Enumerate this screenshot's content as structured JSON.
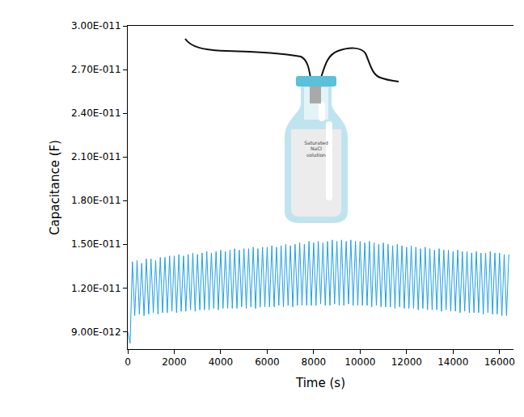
{
  "chart_data": {
    "type": "line",
    "x_label": "Time (s)",
    "y_label": "Capacitance (F)",
    "annotations": [
      "Saturated NaCl solution"
    ],
    "grid": false,
    "color": "#1e9fe8",
    "xlim": [
      0,
      16600
    ],
    "ylim": [
      7.8e-12,
      3e-11
    ],
    "xticks": [
      0,
      2000,
      4000,
      6000,
      8000,
      10000,
      12000,
      14000,
      16000
    ],
    "yticks": [
      {
        "value": 9e-12,
        "label": "9.00E-012"
      },
      {
        "value": 1.2e-11,
        "label": "1.20E-011"
      },
      {
        "value": 1.5e-11,
        "label": "1.50E-011"
      },
      {
        "value": 1.8e-11,
        "label": "1.80E-011"
      },
      {
        "value": 2.1e-11,
        "label": "2.10E-011"
      },
      {
        "value": 2.4e-11,
        "label": "2.40E-011"
      },
      {
        "value": 2.7e-11,
        "label": "2.70E-011"
      },
      {
        "value": 3e-11,
        "label": "3.00E-011"
      }
    ],
    "x": [
      0,
      100,
      200,
      300,
      400,
      500,
      600,
      700,
      800,
      900,
      1000,
      1100,
      1200,
      1300,
      1400,
      1500,
      1600,
      1700,
      1800,
      1900,
      2000,
      2100,
      2200,
      2300,
      2400,
      2500,
      2600,
      2700,
      2800,
      2900,
      3000,
      3100,
      3200,
      3300,
      3400,
      3500,
      3600,
      3700,
      3800,
      3900,
      4000,
      4100,
      4200,
      4300,
      4400,
      4500,
      4600,
      4700,
      4800,
      4900,
      5000,
      5100,
      5200,
      5300,
      5400,
      5500,
      5600,
      5700,
      5800,
      5900,
      6000,
      6100,
      6200,
      6300,
      6400,
      6500,
      6600,
      6700,
      6800,
      6900,
      7000,
      7100,
      7200,
      7300,
      7400,
      7500,
      7600,
      7700,
      7800,
      7900,
      8000,
      8100,
      8200,
      8300,
      8400,
      8500,
      8600,
      8700,
      8800,
      8900,
      9000,
      9100,
      9200,
      9300,
      9400,
      9500,
      9600,
      9700,
      9800,
      9900,
      10000,
      10100,
      10200,
      10300,
      10400,
      10500,
      10600,
      10700,
      10800,
      10900,
      11000,
      11100,
      11200,
      11300,
      11400,
      11500,
      11600,
      11700,
      11800,
      11900,
      12000,
      12100,
      12200,
      12300,
      12400,
      12500,
      12600,
      12700,
      12800,
      12900,
      13000,
      13100,
      13200,
      13300,
      13400,
      13500,
      13600,
      13700,
      13800,
      13900,
      14000,
      14100,
      14200,
      14300,
      14400,
      14500,
      14600,
      14700,
      14800,
      14900,
      15000,
      15100,
      15200,
      15300,
      15400,
      15500,
      15600,
      15700,
      15800,
      15900,
      16000,
      16100,
      16200,
      16300,
      16400
    ],
    "values": [
      9e-12,
      8.2e-12,
      1.38e-11,
      1.01e-11,
      1.39e-11,
      1.02e-11,
      1.37e-11,
      1.01e-11,
      1.4e-11,
      1.02e-11,
      1.4e-11,
      1.03e-11,
      1.39e-11,
      1.02e-11,
      1.41e-11,
      1.03e-11,
      1.41e-11,
      1.03e-11,
      1.42e-11,
      1.04e-11,
      1.42e-11,
      1.03e-11,
      1.43e-11,
      1.04e-11,
      1.42e-11,
      1.04e-11,
      1.43e-11,
      1.05e-11,
      1.44e-11,
      1.04e-11,
      1.43e-11,
      1.05e-11,
      1.44e-11,
      1.05e-11,
      1.45e-11,
      1.05e-11,
      1.44e-11,
      1.06e-11,
      1.45e-11,
      1.05e-11,
      1.46e-11,
      1.06e-11,
      1.45e-11,
      1.06e-11,
      1.46e-11,
      1.06e-11,
      1.47e-11,
      1.06e-11,
      1.46e-11,
      1.07e-11,
      1.47e-11,
      1.06e-11,
      1.47e-11,
      1.07e-11,
      1.48e-11,
      1.06e-11,
      1.47e-11,
      1.07e-11,
      1.48e-11,
      1.07e-11,
      1.48e-11,
      1.07e-11,
      1.49e-11,
      1.07e-11,
      1.48e-11,
      1.08e-11,
      1.49e-11,
      1.07e-11,
      1.5e-11,
      1.08e-11,
      1.49e-11,
      1.07e-11,
      1.5e-11,
      1.08e-11,
      1.51e-11,
      1.08e-11,
      1.5e-11,
      1.08e-11,
      1.52e-11,
      1.08e-11,
      1.51e-11,
      1.08e-11,
      1.52e-11,
      1.09e-11,
      1.51e-11,
      1.08e-11,
      1.52e-11,
      1.08e-11,
      1.53e-11,
      1.09e-11,
      1.52e-11,
      1.08e-11,
      1.53e-11,
      1.08e-11,
      1.52e-11,
      1.09e-11,
      1.53e-11,
      1.08e-11,
      1.52e-11,
      1.08e-11,
      1.52e-11,
      1.08e-11,
      1.51e-11,
      1.08e-11,
      1.52e-11,
      1.07e-11,
      1.51e-11,
      1.08e-11,
      1.5e-11,
      1.07e-11,
      1.51e-11,
      1.07e-11,
      1.5e-11,
      1.07e-11,
      1.49e-11,
      1.06e-11,
      1.5e-11,
      1.07e-11,
      1.49e-11,
      1.06e-11,
      1.48e-11,
      1.06e-11,
      1.49e-11,
      1.06e-11,
      1.48e-11,
      1.05e-11,
      1.47e-11,
      1.06e-11,
      1.48e-11,
      1.05e-11,
      1.47e-11,
      1.05e-11,
      1.46e-11,
      1.05e-11,
      1.47e-11,
      1.04e-11,
      1.46e-11,
      1.05e-11,
      1.46e-11,
      1.04e-11,
      1.45e-11,
      1.04e-11,
      1.46e-11,
      1.03e-11,
      1.45e-11,
      1.04e-11,
      1.45e-11,
      1.03e-11,
      1.44e-11,
      1.03e-11,
      1.45e-11,
      1.03e-11,
      1.44e-11,
      1.02e-11,
      1.44e-11,
      1.03e-11,
      1.45e-11,
      1.02e-11,
      1.44e-11,
      1.02e-11,
      1.44e-11,
      1.01e-11,
      1.43e-11,
      1.01e-11,
      1.43e-11
    ]
  }
}
